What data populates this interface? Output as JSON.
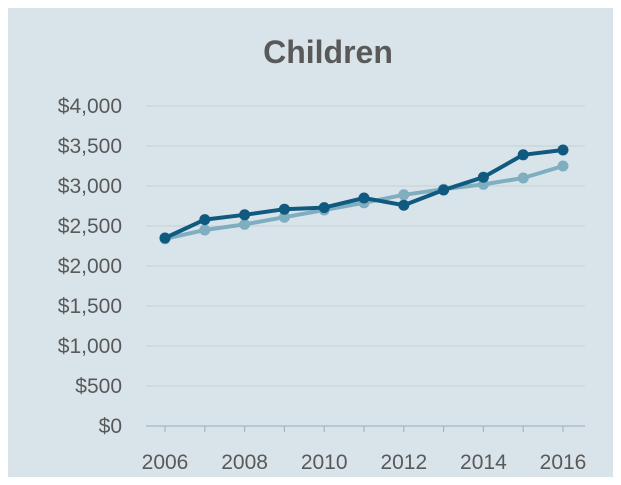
{
  "chart_data": {
    "type": "line",
    "title": "Children",
    "xlabel": "",
    "ylabel": "",
    "x": [
      2006,
      2007,
      2008,
      2009,
      2010,
      2011,
      2012,
      2013,
      2014,
      2015,
      2016
    ],
    "x_tick_labels": [
      "2006",
      "2008",
      "2010",
      "2012",
      "2014",
      "2016"
    ],
    "x_tick_values": [
      2006,
      2008,
      2010,
      2012,
      2014,
      2016
    ],
    "y_tick_labels": [
      "$0",
      "$500",
      "$1,000",
      "$1,500",
      "$2,000",
      "$2,500",
      "$3,000",
      "$3,500",
      "$4,000"
    ],
    "y_tick_values": [
      0,
      500,
      1000,
      1500,
      2000,
      2500,
      3000,
      3500,
      4000
    ],
    "ylim": [
      0,
      4000
    ],
    "grid": true,
    "legend": "none",
    "series": [
      {
        "values": [
          2350,
          2580,
          2640,
          2710,
          2730,
          2850,
          2760,
          2950,
          3110,
          3390,
          3450
        ],
        "color": "#0f5a7e"
      },
      {
        "values": [
          2340,
          2450,
          2520,
          2610,
          2700,
          2790,
          2890,
          2960,
          3020,
          3100,
          3250
        ],
        "color": "#7faec0"
      }
    ]
  }
}
